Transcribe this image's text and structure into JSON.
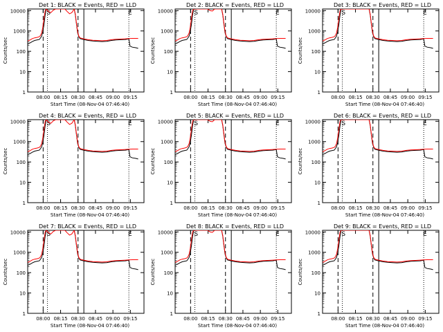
{
  "figure": {
    "ylabel": "Counts/sec",
    "xlabel": "Start Time (08-Nov-04 07:46:40)",
    "series_colors": {
      "events": "#000000",
      "lld": "#ff0000"
    },
    "y_tick_labels": [
      "10000",
      "1000",
      "100",
      "10",
      "1"
    ],
    "x_tick_labels": [
      "08:00",
      "08:15",
      "08:30",
      "08:45",
      "09:00",
      "09:15"
    ],
    "markers": {
      "s_label": "S",
      "e_label": "E"
    }
  },
  "chart_data": [
    {
      "type": "line",
      "title": "Det 1: BLACK = Events, RED = LLD",
      "anomaly": "high"
    },
    {
      "type": "line",
      "title": "Det 2: BLACK = Events, RED = LLD",
      "anomaly": "med"
    },
    {
      "type": "line",
      "title": "Det 3: BLACK = Events, RED = LLD",
      "anomaly": "none"
    },
    {
      "type": "line",
      "title": "Det 4: BLACK = Events, RED = LLD",
      "anomaly": "high"
    },
    {
      "type": "line",
      "title": "Det 5: BLACK = Events, RED = LLD",
      "anomaly": "med"
    },
    {
      "type": "line",
      "title": "Det 6: BLACK = Events, RED = LLD",
      "anomaly": "none"
    },
    {
      "type": "line",
      "title": "Det 7: BLACK = Events, RED = LLD",
      "anomaly": "high"
    },
    {
      "type": "line",
      "title": "Det 8: BLACK = Events, RED = LLD",
      "anomaly": "med"
    },
    {
      "type": "line",
      "title": "Det 9: BLACK = Events, RED = LLD",
      "anomaly": "none"
    }
  ],
  "shared": {
    "x_axis": {
      "start": "07:46:40",
      "end": "09:26:40",
      "range_minutes": [
        0,
        100
      ]
    },
    "y_axis": {
      "scale": "log",
      "range": [
        1,
        12000
      ]
    },
    "vertical_lines": [
      {
        "minute": 13.3,
        "style": "dashed"
      },
      {
        "minute": 17.0,
        "style": "dotted"
      },
      {
        "minute": 43.3,
        "style": "dashed"
      },
      {
        "minute": 48.3,
        "style": "solid"
      },
      {
        "minute": 87.0,
        "style": "dotted"
      }
    ],
    "events_points": [
      [
        0,
        230
      ],
      [
        2,
        260
      ],
      [
        4,
        300
      ],
      [
        6,
        340
      ],
      [
        8,
        360
      ],
      [
        10,
        380
      ],
      [
        11,
        450
      ],
      [
        12,
        560
      ],
      [
        13,
        900
      ],
      [
        14,
        2000
      ],
      [
        15,
        6000
      ],
      [
        16,
        12000
      ],
      [
        40,
        12000
      ],
      [
        41,
        6000
      ],
      [
        42,
        2000
      ],
      [
        43,
        800
      ],
      [
        44,
        520
      ],
      [
        45,
        420
      ],
      [
        48,
        380
      ],
      [
        52,
        340
      ],
      [
        56,
        320
      ],
      [
        60,
        310
      ],
      [
        64,
        300
      ],
      [
        68,
        310
      ],
      [
        72,
        340
      ],
      [
        76,
        360
      ],
      [
        80,
        370
      ],
      [
        84,
        380
      ],
      [
        86,
        400
      ],
      [
        87,
        400
      ],
      [
        88,
        180
      ],
      [
        90,
        160
      ],
      [
        93,
        150
      ],
      [
        95,
        140
      ]
    ],
    "lld_high": [
      [
        0,
        320
      ],
      [
        2,
        360
      ],
      [
        4,
        420
      ],
      [
        6,
        460
      ],
      [
        8,
        480
      ],
      [
        10,
        520
      ],
      [
        11,
        600
      ],
      [
        12,
        800
      ],
      [
        13,
        1500
      ],
      [
        14,
        4000
      ],
      [
        15,
        10000
      ],
      [
        16,
        12000
      ],
      [
        18,
        9000
      ],
      [
        20,
        8000
      ],
      [
        22,
        10500
      ],
      [
        24,
        12000
      ],
      [
        32,
        12000
      ],
      [
        34,
        9000
      ],
      [
        36,
        7000
      ],
      [
        38,
        8000
      ],
      [
        40,
        12000
      ],
      [
        41,
        6500
      ],
      [
        42,
        2200
      ],
      [
        43,
        900
      ],
      [
        44,
        560
      ],
      [
        45,
        460
      ],
      [
        48,
        410
      ],
      [
        52,
        370
      ],
      [
        56,
        350
      ],
      [
        60,
        340
      ],
      [
        64,
        330
      ],
      [
        68,
        340
      ],
      [
        72,
        370
      ],
      [
        76,
        390
      ],
      [
        80,
        400
      ],
      [
        84,
        410
      ],
      [
        87,
        420
      ],
      [
        90,
        430
      ],
      [
        93,
        430
      ],
      [
        95,
        430
      ]
    ],
    "lld_med": [
      [
        0,
        320
      ],
      [
        2,
        360
      ],
      [
        4,
        420
      ],
      [
        6,
        460
      ],
      [
        8,
        480
      ],
      [
        10,
        520
      ],
      [
        11,
        600
      ],
      [
        12,
        800
      ],
      [
        13,
        1500
      ],
      [
        14,
        4000
      ],
      [
        15,
        10000
      ],
      [
        16,
        12000
      ],
      [
        28,
        12000
      ],
      [
        30,
        10000
      ],
      [
        32,
        9500
      ],
      [
        34,
        12000
      ],
      [
        40,
        12000
      ],
      [
        41,
        6500
      ],
      [
        42,
        2200
      ],
      [
        43,
        900
      ],
      [
        44,
        560
      ],
      [
        45,
        460
      ],
      [
        48,
        410
      ],
      [
        52,
        370
      ],
      [
        56,
        350
      ],
      [
        60,
        340
      ],
      [
        64,
        330
      ],
      [
        68,
        340
      ],
      [
        72,
        370
      ],
      [
        76,
        390
      ],
      [
        80,
        400
      ],
      [
        84,
        410
      ],
      [
        87,
        420
      ],
      [
        90,
        430
      ],
      [
        93,
        430
      ],
      [
        95,
        430
      ]
    ],
    "lld_none": [
      [
        0,
        320
      ],
      [
        2,
        360
      ],
      [
        4,
        420
      ],
      [
        6,
        460
      ],
      [
        8,
        480
      ],
      [
        10,
        520
      ],
      [
        11,
        600
      ],
      [
        12,
        800
      ],
      [
        13,
        1500
      ],
      [
        14,
        4000
      ],
      [
        15,
        10000
      ],
      [
        16,
        12000
      ],
      [
        40,
        12000
      ],
      [
        41,
        6500
      ],
      [
        42,
        2200
      ],
      [
        43,
        900
      ],
      [
        44,
        560
      ],
      [
        45,
        460
      ],
      [
        48,
        410
      ],
      [
        52,
        370
      ],
      [
        56,
        350
      ],
      [
        60,
        340
      ],
      [
        64,
        330
      ],
      [
        68,
        340
      ],
      [
        72,
        370
      ],
      [
        76,
        390
      ],
      [
        80,
        400
      ],
      [
        84,
        410
      ],
      [
        87,
        420
      ],
      [
        90,
        430
      ],
      [
        93,
        430
      ],
      [
        95,
        430
      ]
    ]
  }
}
